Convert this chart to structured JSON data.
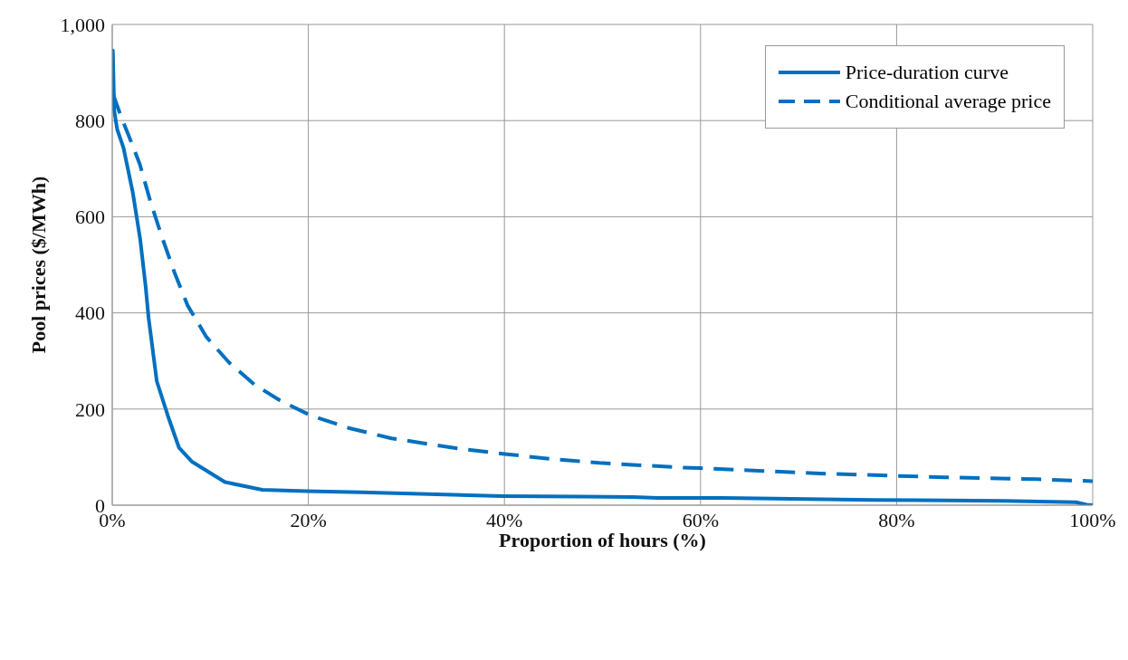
{
  "chart_data": {
    "type": "line",
    "xlabel": "Proportion of hours (%)",
    "ylabel": "Pool prices ($/MWh)",
    "xlim": [
      0,
      100
    ],
    "xticks": [
      {
        "value": 0,
        "label": "0%"
      },
      {
        "value": 20,
        "label": "20%"
      },
      {
        "value": 40,
        "label": "40%"
      },
      {
        "value": 60,
        "label": "60%"
      },
      {
        "value": 80,
        "label": "80%"
      },
      {
        "value": 100,
        "label": "100%"
      }
    ],
    "ylim": [
      0,
      1000
    ],
    "yticks": [
      0,
      200,
      400,
      600,
      800,
      {
        "value": 1000,
        "label": "1,000"
      }
    ],
    "grid": true,
    "legend": "top right",
    "marker": "none",
    "series": [
      {
        "name": "Price-duration curve",
        "color": "#0070c0",
        "line_style": "solid",
        "x": [
          0,
          0.06,
          0.2,
          0.5,
          1.15,
          2.09,
          2.85,
          3.41,
          3.71,
          4.54,
          5.67,
          6.8,
          8.1,
          11.5,
          15.3,
          19.8,
          25.4,
          39.8,
          47.8,
          53.1,
          55.6,
          62.3,
          65.9,
          77.7,
          91,
          98.3,
          99.4,
          100
        ],
        "values": [
          946,
          946,
          821,
          782,
          743,
          651,
          553,
          454,
          389,
          258,
          186,
          120,
          91,
          48,
          32,
          29,
          27,
          19,
          18,
          17,
          15,
          15,
          14,
          11,
          9,
          6,
          1,
          0
        ]
      },
      {
        "name": "Conditional average price",
        "color": "#0070c0",
        "line_style": "dashed",
        "x": [
          0.1,
          0.9,
          1.5,
          2.8,
          3.9,
          5.05,
          6.4,
          7.7,
          9.6,
          11.9,
          14.5,
          17.1,
          20.2,
          24.2,
          28.5,
          35.2,
          39.8,
          44.8,
          49.7,
          53.1,
          57.4,
          60,
          66.4,
          72.2,
          79.9,
          84.9,
          94.4,
          100
        ],
        "values": [
          854,
          808,
          778,
          710,
          631,
          559,
          481,
          415,
          350,
          297,
          251,
          218,
          187,
          160,
          139,
          118,
          107,
          96,
          88,
          84,
          79,
          77,
          71,
          66,
          61,
          58,
          54,
          50
        ]
      }
    ]
  }
}
